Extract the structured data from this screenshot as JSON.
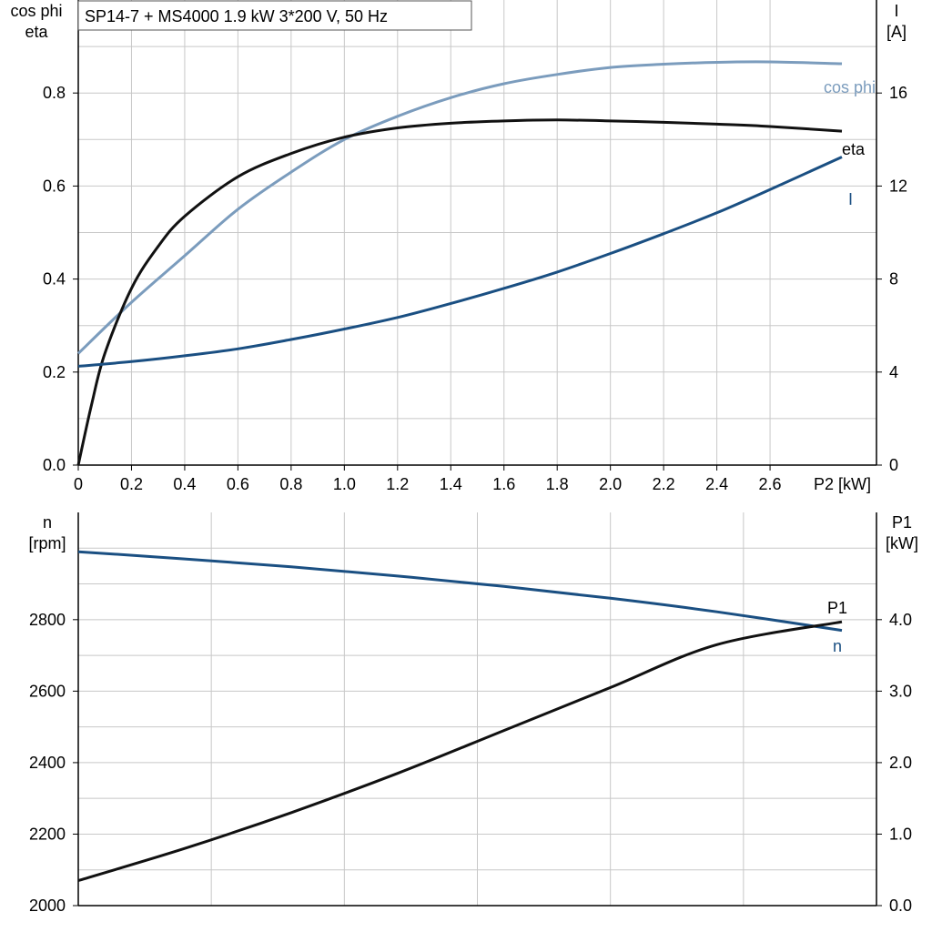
{
  "chart_data": [
    {
      "type": "line",
      "title": "SP14-7 + MS4000   1.9 kW   3*200 V, 50 Hz",
      "xlabel": "P2 [kW]",
      "ylabel_left": [
        "cos phi",
        "eta"
      ],
      "ylabel_right": [
        "I",
        "[A]"
      ],
      "xlim": [
        0,
        3.0
      ],
      "ylim_left": [
        0,
        1.0
      ],
      "ylim_right": [
        0,
        20
      ],
      "x_ticks": [
        0,
        0.2,
        0.4,
        0.6,
        0.8,
        1.0,
        1.2,
        1.4,
        1.6,
        1.8,
        2.0,
        2.2,
        2.4,
        2.6
      ],
      "x_tick_labels": [
        "0",
        "0.2",
        "0.4",
        "0.6",
        "0.8",
        "1.0",
        "1.2",
        "1.4",
        "1.6",
        "1.8",
        "2.0",
        "2.2",
        "2.4",
        "2.6"
      ],
      "y_left_ticks": [
        0.0,
        0.2,
        0.4,
        0.6,
        0.8
      ],
      "y_left_tick_labels": [
        "0.0",
        "0.2",
        "0.4",
        "0.6",
        "0.8"
      ],
      "y_right_ticks": [
        0,
        4,
        8,
        12,
        16
      ],
      "y_right_tick_labels": [
        "0",
        "4",
        "8",
        "12",
        "16"
      ],
      "grid": true,
      "series": [
        {
          "name": "cos phi",
          "axis": "left",
          "color": "#7b9cbd",
          "x": [
            0,
            0.2,
            0.4,
            0.6,
            0.8,
            1.0,
            1.2,
            1.4,
            1.6,
            1.8,
            2.0,
            2.2,
            2.4,
            2.6,
            2.87
          ],
          "y": [
            0.24,
            0.35,
            0.45,
            0.55,
            0.63,
            0.7,
            0.75,
            0.79,
            0.82,
            0.84,
            0.855,
            0.862,
            0.866,
            0.867,
            0.863
          ]
        },
        {
          "name": "eta",
          "axis": "left",
          "color": "#111111",
          "x": [
            0,
            0.05,
            0.1,
            0.2,
            0.3,
            0.4,
            0.6,
            0.8,
            1.0,
            1.2,
            1.4,
            1.6,
            1.8,
            2.0,
            2.2,
            2.4,
            2.6,
            2.87
          ],
          "y": [
            0.0,
            0.13,
            0.24,
            0.38,
            0.47,
            0.535,
            0.62,
            0.67,
            0.705,
            0.725,
            0.735,
            0.74,
            0.742,
            0.74,
            0.737,
            0.733,
            0.728,
            0.718
          ]
        },
        {
          "name": "I",
          "axis": "right",
          "color": "#1a4f82",
          "x": [
            0,
            0.2,
            0.4,
            0.6,
            0.8,
            1.0,
            1.2,
            1.4,
            1.6,
            1.8,
            2.0,
            2.2,
            2.4,
            2.6,
            2.87
          ],
          "y": [
            4.25,
            4.45,
            4.7,
            5.0,
            5.4,
            5.85,
            6.35,
            6.95,
            7.6,
            8.3,
            9.1,
            9.95,
            10.85,
            11.85,
            13.25
          ]
        }
      ]
    },
    {
      "type": "line",
      "xlim": [
        0,
        3.0
      ],
      "ylabel_left": [
        "n",
        "[rpm]"
      ],
      "ylabel_right": [
        "P1",
        "[kW]"
      ],
      "ylim_left": [
        2000,
        3100
      ],
      "ylim_right": [
        0.0,
        5.5
      ],
      "y_left_ticks": [
        2000,
        2200,
        2400,
        2600,
        2800
      ],
      "y_left_tick_labels": [
        "2000",
        "2200",
        "2400",
        "2600",
        "2800"
      ],
      "y_right_ticks": [
        0.0,
        1.0,
        2.0,
        3.0,
        4.0
      ],
      "y_right_tick_labels": [
        "0.0",
        "1.0",
        "2.0",
        "3.0",
        "4.0"
      ],
      "grid": true,
      "series": [
        {
          "name": "n",
          "axis": "left",
          "color": "#1a4f82",
          "x": [
            0,
            0.4,
            0.8,
            1.2,
            1.6,
            2.0,
            2.4,
            2.87
          ],
          "y": [
            2990,
            2970,
            2948,
            2922,
            2893,
            2860,
            2822,
            2770
          ]
        },
        {
          "name": "P1",
          "axis": "right",
          "color": "#111111",
          "x": [
            0,
            0.4,
            0.8,
            1.2,
            1.6,
            2.0,
            2.4,
            2.87
          ],
          "y": [
            0.35,
            0.8,
            1.3,
            1.85,
            2.45,
            3.05,
            3.65,
            3.97
          ]
        }
      ]
    }
  ]
}
